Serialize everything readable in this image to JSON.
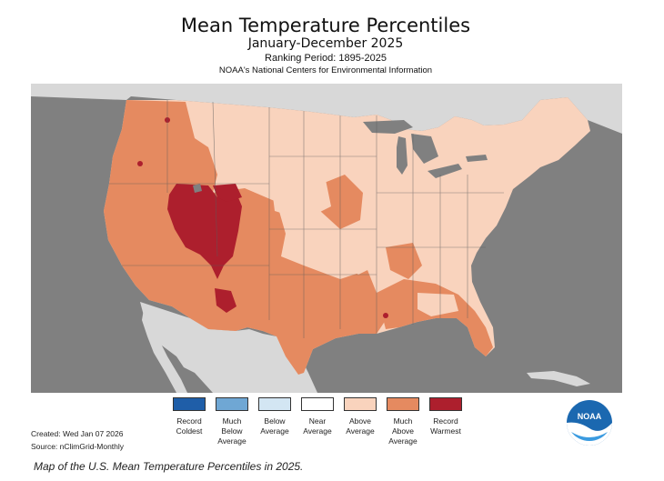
{
  "title": "Mean Temperature Percentiles",
  "subtitle": "January-December 2025",
  "ranking_period": "Ranking Period: 1895-2025",
  "organization": "NOAA's National Centers for Environmental Information",
  "legend": [
    {
      "label": "Record Coldest",
      "color": "#1f5ea8"
    },
    {
      "label": "Much Below Average",
      "color": "#6fa7d4"
    },
    {
      "label": "Below Average",
      "color": "#d3e6f3"
    },
    {
      "label": "Near Average",
      "color": "#ffffff"
    },
    {
      "label": "Above Average",
      "color": "#f9d3bd"
    },
    {
      "label": "Much Above Average",
      "color": "#e58a60"
    },
    {
      "label": "Record Warmest",
      "color": "#ad1f2d"
    }
  ],
  "created": "Created: Wed Jan 07 2026",
  "source": "Source: nClimGrid-Monthly",
  "logo_text": "NOAA",
  "caption": "Map of the U.S. Mean Temperature Percentiles in 2025.",
  "colors": {
    "ocean": "#808080",
    "land_other": "#d8d8d8",
    "above": "#f9d3bd",
    "much_above": "#e58a60",
    "record_warm": "#ad1f2d",
    "near": "#ffffff"
  }
}
